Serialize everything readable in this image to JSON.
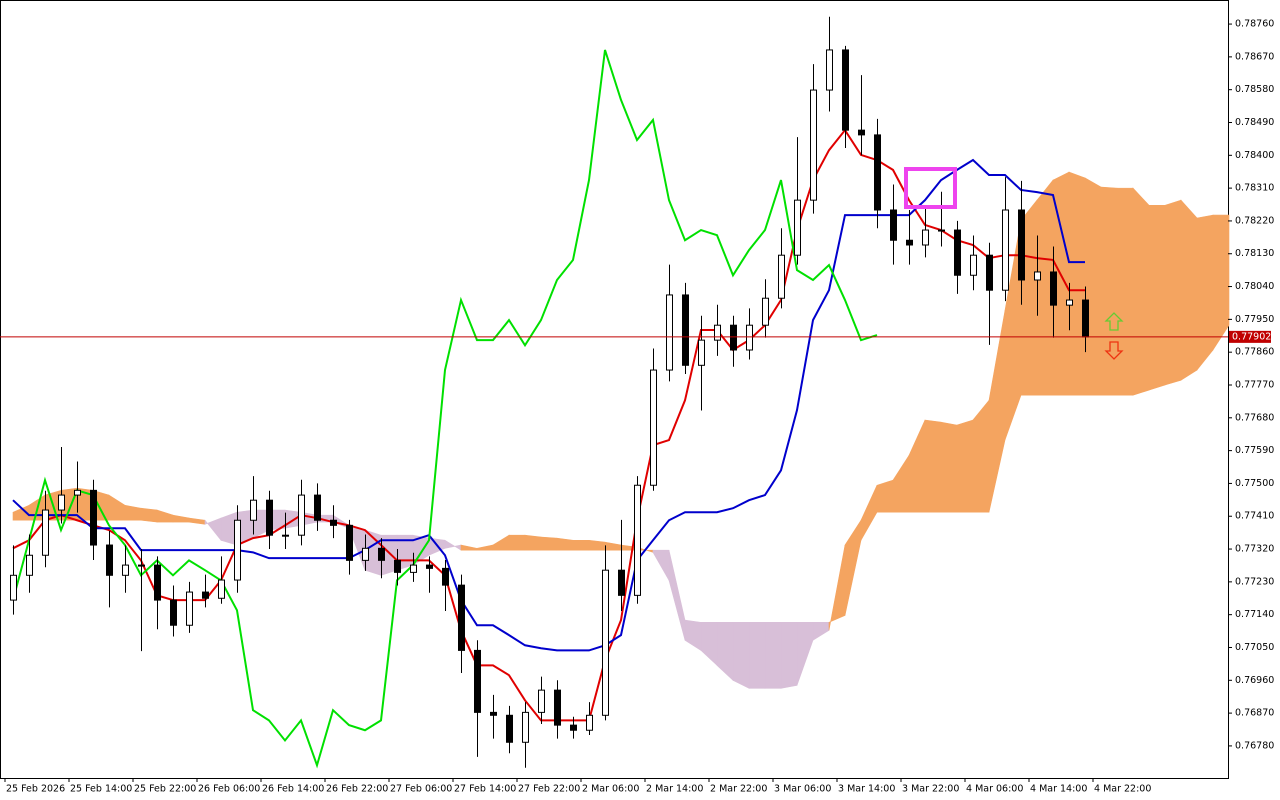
{
  "chart_data": {
    "type": "candlestick",
    "categories": [
      "25 Feb 2026",
      null,
      null,
      null,
      "25 Feb 14:00",
      null,
      null,
      null,
      "25 Feb 22:00",
      null,
      null,
      null,
      "26 Feb 06:00",
      null,
      null,
      null,
      "26 Feb 14:00",
      null,
      null,
      null,
      "26 Feb 22:00",
      null,
      null,
      null,
      "27 Feb 06:00",
      null,
      null,
      null,
      "27 Feb 14:00",
      null,
      null,
      null,
      "27 Feb 22:00",
      null,
      null,
      null,
      "2 Mar 06:00",
      null,
      null,
      null,
      "2 Mar 14:00",
      null,
      null,
      null,
      "2 Mar 22:00",
      null,
      null,
      null,
      "3 Mar 06:00",
      null,
      null,
      null,
      "3 Mar 14:00",
      null,
      null,
      null,
      "3 Mar 22:00",
      null,
      null,
      null,
      "4 Mar 06:00",
      null,
      null,
      null,
      "4 Mar 14:00",
      null,
      null,
      null,
      "4 Mar 22:00",
      null,
      null,
      null,
      null,
      null,
      null,
      null,
      null
    ],
    "candles": [
      [
        0.7718,
        0.7733,
        0.7714,
        0.77248
      ],
      [
        0.77248,
        0.7736,
        0.772,
        0.77303
      ],
      [
        0.77303,
        0.7748,
        0.7727,
        0.77427
      ],
      [
        0.77427,
        0.776,
        0.7739,
        0.77468
      ],
      [
        0.77468,
        0.7756,
        0.7742,
        0.77481
      ],
      [
        0.77481,
        0.7751,
        0.7729,
        0.77331
      ],
      [
        0.77331,
        0.7737,
        0.7716,
        0.77248
      ],
      [
        0.77248,
        0.7733,
        0.772,
        0.77276
      ],
      [
        0.77276,
        0.7732,
        0.7704,
        0.77276
      ],
      [
        0.77276,
        0.773,
        0.771,
        0.7718
      ],
      [
        0.7718,
        0.7722,
        0.7708,
        0.77111
      ],
      [
        0.77111,
        0.7723,
        0.7709,
        0.77202
      ],
      [
        0.77202,
        0.7725,
        0.7716,
        0.77185
      ],
      [
        0.77185,
        0.773,
        0.7717,
        0.77235
      ],
      [
        0.77235,
        0.7744,
        0.772,
        0.77399
      ],
      [
        0.77399,
        0.7752,
        0.7736,
        0.77454
      ],
      [
        0.77454,
        0.7748,
        0.7732,
        0.77358
      ],
      [
        0.77358,
        0.7742,
        0.7732,
        0.77358
      ],
      [
        0.77358,
        0.7751,
        0.7733,
        0.77468
      ],
      [
        0.77468,
        0.775,
        0.7737,
        0.77399
      ],
      [
        0.77399,
        0.7744,
        0.7735,
        0.77385
      ],
      [
        0.77385,
        0.774,
        0.7725,
        0.77289
      ],
      [
        0.77289,
        0.7736,
        0.7726,
        0.77322
      ],
      [
        0.77322,
        0.7735,
        0.7724,
        0.77289
      ],
      [
        0.77289,
        0.7732,
        0.7722,
        0.77256
      ],
      [
        0.77256,
        0.7731,
        0.7723,
        0.77276
      ],
      [
        0.77276,
        0.773,
        0.772,
        0.77267
      ],
      [
        0.77267,
        0.7729,
        0.7715,
        0.77221
      ],
      [
        0.77221,
        0.7725,
        0.7698,
        0.77042
      ],
      [
        0.77042,
        0.7707,
        0.7675,
        0.76872
      ],
      [
        0.76872,
        0.7692,
        0.768,
        0.76864
      ],
      [
        0.76864,
        0.7689,
        0.7676,
        0.7679
      ],
      [
        0.7679,
        0.769,
        0.7672,
        0.76872
      ],
      [
        0.76872,
        0.7697,
        0.7684,
        0.76933
      ],
      [
        0.76933,
        0.7696,
        0.768,
        0.76837
      ],
      [
        0.76837,
        0.7686,
        0.768,
        0.76823
      ],
      [
        0.76823,
        0.769,
        0.7681,
        0.76864
      ],
      [
        0.76864,
        0.7733,
        0.7685,
        0.77262
      ],
      [
        0.77262,
        0.774,
        0.7715,
        0.77193
      ],
      [
        0.77193,
        0.7752,
        0.7717,
        0.77495
      ],
      [
        0.77495,
        0.7787,
        0.7748,
        0.77811
      ],
      [
        0.77811,
        0.781,
        0.7778,
        0.78017
      ],
      [
        0.78017,
        0.7805,
        0.778,
        0.77824
      ],
      [
        0.77824,
        0.7796,
        0.777,
        0.77893
      ],
      [
        0.77893,
        0.7799,
        0.7785,
        0.77934
      ],
      [
        0.77934,
        0.7796,
        0.7782,
        0.77866
      ],
      [
        0.77866,
        0.7798,
        0.7784,
        0.77934
      ],
      [
        0.77934,
        0.7806,
        0.779,
        0.78008
      ],
      [
        0.78008,
        0.782,
        0.7798,
        0.78126
      ],
      [
        0.78126,
        0.7845,
        0.781,
        0.78277
      ],
      [
        0.78277,
        0.7865,
        0.7824,
        0.78579
      ],
      [
        0.78579,
        0.7878,
        0.7852,
        0.78689
      ],
      [
        0.78689,
        0.787,
        0.7842,
        0.78469
      ],
      [
        0.78469,
        0.7862,
        0.784,
        0.78456
      ],
      [
        0.78456,
        0.785,
        0.782,
        0.7825
      ],
      [
        0.7825,
        0.7832,
        0.781,
        0.78167
      ],
      [
        0.78167,
        0.7825,
        0.781,
        0.78154
      ],
      [
        0.78154,
        0.7826,
        0.7812,
        0.78195
      ],
      [
        0.78195,
        0.783,
        0.7815,
        0.78195
      ],
      [
        0.78195,
        0.7822,
        0.7802,
        0.78071
      ],
      [
        0.78071,
        0.7818,
        0.7803,
        0.78126
      ],
      [
        0.78126,
        0.7816,
        0.7788,
        0.7803
      ],
      [
        0.7803,
        0.7834,
        0.78,
        0.7825
      ],
      [
        0.7825,
        0.7833,
        0.7799,
        0.78058
      ],
      [
        0.78058,
        0.7818,
        0.7796,
        0.7808
      ],
      [
        0.7808,
        0.7815,
        0.779,
        0.77989
      ],
      [
        0.77989,
        0.7805,
        0.7792,
        0.78003
      ],
      [
        0.78003,
        0.7804,
        0.7786,
        0.77902
      ]
    ],
    "up_color": "#ffffff",
    "down_color": "#000000",
    "series": [
      {
        "color": "#e00000",
        "values": [
          0.77322,
          0.77344,
          0.77399,
          0.77413,
          0.77399,
          0.77385,
          0.77372,
          0.77344,
          0.77289,
          0.77193,
          0.7718,
          0.7718,
          0.7718,
          0.77234,
          0.77331,
          0.7735,
          0.77358,
          0.77385,
          0.77413,
          0.77405,
          0.77394,
          0.77385,
          0.77372,
          0.77331,
          0.77289,
          0.77289,
          0.77289,
          0.77248,
          0.77097,
          0.77001,
          0.77001,
          0.76974,
          0.76905,
          0.7685,
          0.7685,
          0.7685,
          0.7685,
          0.77015,
          0.77125,
          0.77399,
          0.77605,
          0.77619,
          0.77728,
          0.77921,
          0.77921,
          0.77866,
          0.77893,
          0.77934,
          0.78003,
          0.78195,
          0.78332,
          0.78414,
          0.78469,
          0.78401,
          0.78387,
          0.7836,
          0.78277,
          0.78209,
          0.78195,
          0.78167,
          0.78154,
          0.78118,
          0.78126,
          0.78126,
          0.78118,
          0.78113,
          0.7803,
          0.7803,
          null,
          null,
          null,
          null,
          null,
          null,
          null,
          null,
          null
        ]
      },
      {
        "color": "#0000cc",
        "values": [
          0.77454,
          0.77413,
          0.77413,
          0.77413,
          0.77413,
          0.77377,
          0.77377,
          0.77377,
          0.77317,
          0.77317,
          0.77317,
          0.77317,
          0.77317,
          0.77317,
          0.77317,
          0.77311,
          0.77295,
          0.77295,
          0.77295,
          0.77295,
          0.77295,
          0.77295,
          0.77317,
          0.77344,
          0.77344,
          0.77344,
          0.77358,
          0.77303,
          0.7718,
          0.77111,
          0.77111,
          0.77084,
          0.77056,
          0.77048,
          0.77042,
          0.77042,
          0.77042,
          0.77056,
          0.77084,
          0.77289,
          0.77344,
          0.77399,
          0.77421,
          0.77421,
          0.77421,
          0.77432,
          0.77454,
          0.77468,
          0.77536,
          0.77701,
          0.77948,
          0.7803,
          0.78236,
          0.78236,
          0.78236,
          0.78236,
          0.78236,
          0.78277,
          0.78332,
          0.7836,
          0.78387,
          0.78346,
          0.78346,
          0.78305,
          0.78299,
          0.78291,
          0.78107,
          0.78107,
          null,
          null,
          null,
          null,
          null,
          null,
          null,
          null,
          null
        ]
      },
      {
        "color": "#00e000",
        "values": [
          0.7718,
          0.77344,
          0.77509,
          0.77372,
          0.77481,
          0.77468,
          0.77385,
          0.77331,
          0.77248,
          0.77289,
          0.77248,
          0.77289,
          0.77262,
          0.77234,
          0.77152,
          0.76878,
          0.7685,
          0.76795,
          0.7685,
          0.76727,
          0.76878,
          0.76837,
          0.76823,
          0.7685,
          0.77234,
          0.77276,
          0.77344,
          0.77811,
          0.78003,
          0.77893,
          0.77893,
          0.77948,
          0.77879,
          0.77948,
          0.78058,
          0.78113,
          0.78332,
          0.78689,
          0.78552,
          0.78442,
          0.78497,
          0.78277,
          0.78167,
          0.78195,
          0.78181,
          0.78071,
          0.7814,
          0.78195,
          0.78332,
          0.78085,
          0.78058,
          0.78099,
          0.78003,
          0.77893,
          0.77907,
          null,
          null,
          null,
          null,
          null,
          null,
          null,
          null,
          null,
          null,
          null,
          null,
          null,
          null,
          null,
          null,
          null,
          null,
          null,
          null,
          null,
          null
        ]
      }
    ],
    "cloud": {
      "bull_color": "#f4a460",
      "bear_color": "#d8bfd8",
      "span_a": [
        0.77421,
        0.7744,
        0.77468,
        0.77481,
        0.77487,
        0.77481,
        0.77468,
        0.7744,
        0.77432,
        0.77427,
        0.77413,
        0.77405,
        0.77399,
        0.77344,
        0.77331,
        0.7735,
        0.77372,
        0.77377,
        0.77385,
        0.77394,
        0.77394,
        0.77377,
        0.77262,
        0.77248,
        0.77262,
        0.77276,
        0.77303,
        0.77322,
        0.77331,
        0.77322,
        0.77331,
        0.77358,
        0.77358,
        0.77353,
        0.7735,
        0.77344,
        0.77344,
        0.77339,
        0.77331,
        0.77325,
        0.77311,
        0.77234,
        0.7707,
        0.77042,
        0.77001,
        0.7696,
        0.76938,
        0.76938,
        0.76938,
        0.76946,
        0.7707,
        0.77097,
        0.77331,
        0.77399,
        0.77495,
        0.77509,
        0.77577,
        0.77674,
        0.77668,
        0.7766,
        0.77674,
        0.77728,
        0.77975,
        0.78222,
        0.78277,
        0.78332,
        0.78354,
        0.78338,
        0.78313,
        0.7831,
        0.7831,
        0.78263,
        0.78263,
        0.78277,
        0.78228,
        0.78236,
        0.78236
      ],
      "span_b": [
        0.77399,
        0.77399,
        0.77399,
        0.77399,
        0.77399,
        0.77399,
        0.77399,
        0.77399,
        0.77399,
        0.77394,
        0.77394,
        0.77394,
        0.77388,
        0.77405,
        0.77421,
        0.77427,
        0.77427,
        0.77427,
        0.77421,
        0.77413,
        0.77413,
        0.77385,
        0.77372,
        0.77358,
        0.77358,
        0.77358,
        0.7735,
        0.77344,
        0.77317,
        0.77317,
        0.77317,
        0.77317,
        0.77317,
        0.77317,
        0.77317,
        0.77317,
        0.77317,
        0.77317,
        0.77317,
        0.77317,
        0.77317,
        0.77317,
        0.77125,
        0.77119,
        0.77119,
        0.77119,
        0.77119,
        0.77119,
        0.77119,
        0.77119,
        0.77119,
        0.77119,
        0.77138,
        0.77344,
        0.77421,
        0.77421,
        0.77421,
        0.77421,
        0.77421,
        0.77421,
        0.77421,
        0.77421,
        0.77619,
        0.77742,
        0.77742,
        0.77742,
        0.77742,
        0.77742,
        0.77742,
        0.77742,
        0.77742,
        0.77756,
        0.7777,
        0.77783,
        0.77811,
        0.77866,
        0.77934
      ]
    },
    "current_price": 0.77902,
    "price_line_color": "#c00000",
    "ylim": [
      0.76692,
      0.78826
    ],
    "yticks": [
      {
        "value": 0.7876,
        "label": "0.78760"
      },
      {
        "value": 0.7867,
        "label": "0.78670"
      },
      {
        "value": 0.7858,
        "label": "0.78580"
      },
      {
        "value": 0.7849,
        "label": "0.78490"
      },
      {
        "value": 0.784,
        "label": "0.78400"
      },
      {
        "value": 0.7831,
        "label": "0.78310"
      },
      {
        "value": 0.7822,
        "label": "0.78220"
      },
      {
        "value": 0.7813,
        "label": "0.78130"
      },
      {
        "value": 0.7804,
        "label": "0.78040"
      },
      {
        "value": 0.7795,
        "label": "0.77950"
      },
      {
        "value": 0.7786,
        "label": "0.77860"
      },
      {
        "value": 0.7777,
        "label": "0.77770"
      },
      {
        "value": 0.7768,
        "label": "0.77680"
      },
      {
        "value": 0.7759,
        "label": "0.77590"
      },
      {
        "value": 0.775,
        "label": "0.77500"
      },
      {
        "value": 0.7741,
        "label": "0.77410"
      },
      {
        "value": 0.7732,
        "label": "0.77320"
      },
      {
        "value": 0.7723,
        "label": "0.77230"
      },
      {
        "value": 0.7714,
        "label": "0.77140"
      },
      {
        "value": 0.7705,
        "label": "0.77050"
      },
      {
        "value": 0.7696,
        "label": "0.76960"
      },
      {
        "value": 0.7687,
        "label": "0.76870"
      },
      {
        "value": 0.7678,
        "label": "0.76780"
      }
    ]
  }
}
